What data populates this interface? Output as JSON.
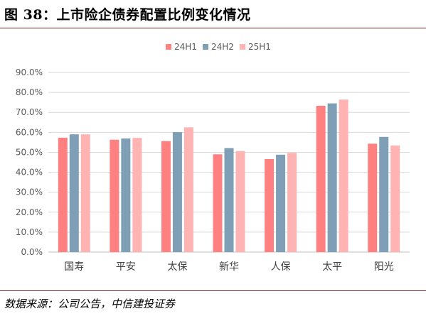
{
  "header": {
    "title": "图 38：上市险企债券配置比例变化情况"
  },
  "footer": {
    "source": "数据来源：公司公告，中信建投证券"
  },
  "chart_data": {
    "type": "bar",
    "categories": [
      "国寿",
      "平安",
      "太保",
      "新华",
      "人保",
      "太平",
      "阳光"
    ],
    "series": [
      {
        "name": "24H1",
        "color": "#ff8080",
        "values": [
          57.3,
          56.3,
          55.6,
          49.0,
          46.6,
          73.3,
          54.3
        ]
      },
      {
        "name": "24H2",
        "color": "#7f9fb6",
        "values": [
          59.0,
          56.9,
          60.1,
          52.1,
          48.8,
          74.5,
          57.7
        ]
      },
      {
        "name": "25H1",
        "color": "#ffb3b3",
        "values": [
          59.0,
          57.2,
          62.5,
          50.6,
          49.7,
          76.4,
          53.4
        ]
      }
    ],
    "ylim": [
      0,
      90
    ],
    "yticks": [
      0,
      10,
      20,
      30,
      40,
      50,
      60,
      70,
      80,
      90
    ],
    "ytick_labels": [
      "0.0%",
      "10.0%",
      "20.0%",
      "30.0%",
      "40.0%",
      "50.0%",
      "60.0%",
      "70.0%",
      "80.0%",
      "90.0%"
    ],
    "grid": true,
    "legend_position": "top"
  }
}
